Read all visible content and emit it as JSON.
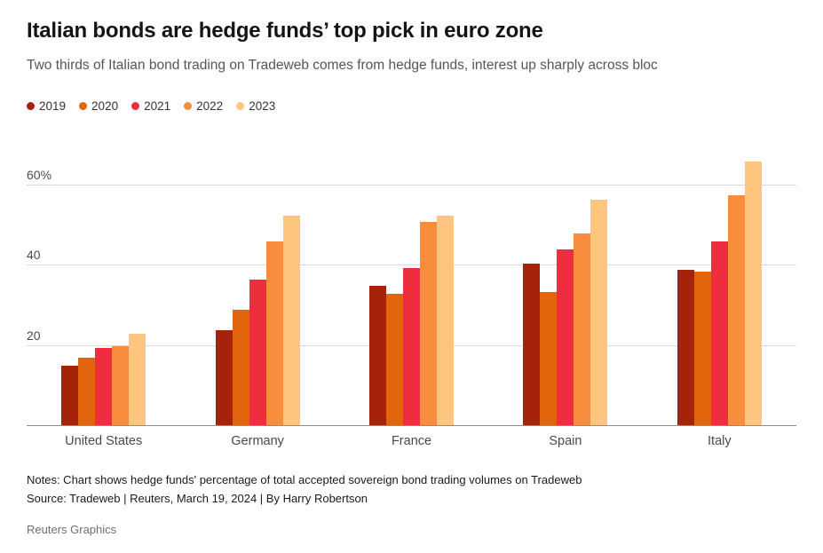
{
  "header": {
    "title": "Italian bonds are hedge funds’ top pick in euro zone",
    "subtitle": "Two thirds of Italian bond trading on Tradeweb comes from hedge funds, interest up sharply across bloc"
  },
  "chart_data": {
    "type": "bar",
    "title": "Italian bonds are hedge funds’ top pick in euro zone",
    "categories": [
      "United States",
      "Germany",
      "France",
      "Spain",
      "Italy"
    ],
    "series": [
      {
        "name": "2019",
        "color": "#a52309",
        "values": [
          15,
          24,
          35,
          40.5,
          39
        ]
      },
      {
        "name": "2020",
        "color": "#e2640c",
        "values": [
          17,
          29,
          33,
          33.5,
          38.5
        ]
      },
      {
        "name": "2021",
        "color": "#ee2d3e",
        "values": [
          19.5,
          36.5,
          39.5,
          44,
          46
        ]
      },
      {
        "name": "2022",
        "color": "#f78d3d",
        "values": [
          20,
          46,
          51,
          48,
          57.5
        ]
      },
      {
        "name": "2023",
        "color": "#fdc57e",
        "values": [
          23,
          52.5,
          52.5,
          56.5,
          66
        ]
      }
    ],
    "ylabel": "",
    "xlabel": "",
    "ylim": [
      0,
      70
    ],
    "yticks": [
      {
        "value": 20,
        "label": "20"
      },
      {
        "value": 40,
        "label": "40"
      },
      {
        "value": 60,
        "label": "60%"
      }
    ],
    "grid": true,
    "legend_position": "top"
  },
  "notes": {
    "line1": "Notes: Chart shows hedge funds' percentage of total accepted sovereign bond trading volumes on Tradeweb",
    "line2": "Source: Tradeweb | Reuters, March 19, 2024 | By Harry Robertson"
  },
  "footer": {
    "credit": "Reuters Graphics"
  }
}
